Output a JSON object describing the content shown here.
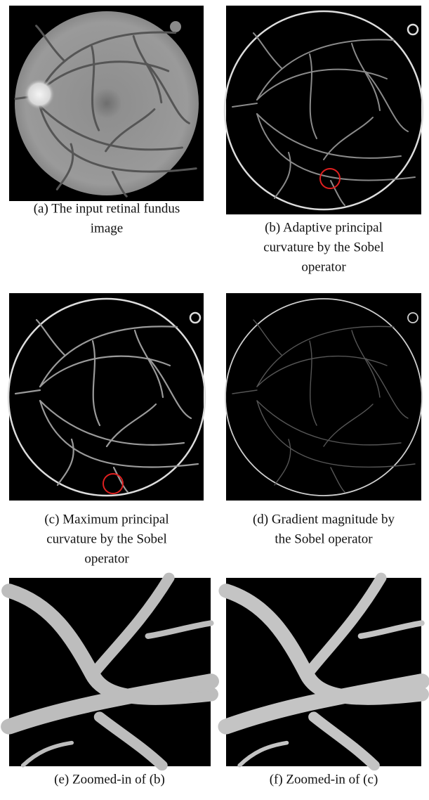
{
  "panels": [
    {
      "caption": [
        "(a) The input retinal fundus",
        "image"
      ]
    },
    {
      "caption": [
        "(b) Adaptive principal",
        "curvature by the Sobel",
        "operator"
      ]
    },
    {
      "caption": [
        "(c) Maximum principal",
        "curvature by the Sobel",
        "operator"
      ]
    },
    {
      "caption": [
        "(d) Gradient magnitude by",
        "the Sobel operator"
      ]
    },
    {
      "caption": [
        "(e) Zoomed-in of (b)"
      ]
    },
    {
      "caption": [
        "(f) Zoomed-in of (c)"
      ]
    }
  ]
}
